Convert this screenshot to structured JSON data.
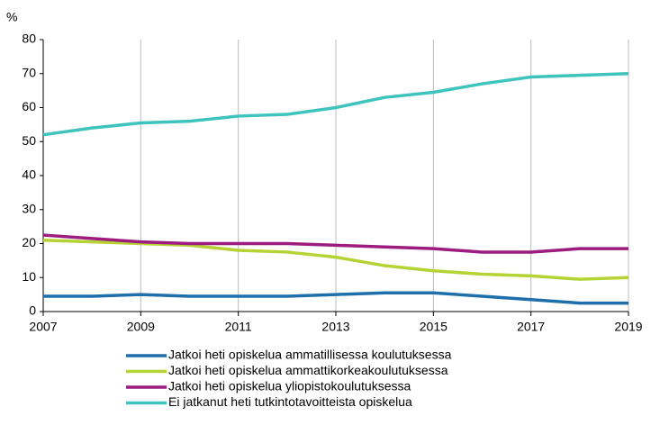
{
  "chart_data": {
    "type": "line",
    "y_label": "%",
    "x": [
      2007,
      2008,
      2009,
      2010,
      2011,
      2012,
      2013,
      2014,
      2015,
      2016,
      2017,
      2018,
      2019
    ],
    "xlim": [
      2007,
      2019
    ],
    "xticks": [
      2007,
      2009,
      2011,
      2013,
      2015,
      2017,
      2019
    ],
    "ylim": [
      0,
      80
    ],
    "yticks": [
      0,
      10,
      20,
      30,
      40,
      50,
      60,
      70,
      80
    ],
    "grid": "x",
    "legend": "bottom",
    "series": [
      {
        "name": "Jatkoi heti opiskelua ammatillisessa koulutuksessa",
        "color": "#1f6fab",
        "values": [
          4.5,
          4.5,
          5,
          4.5,
          4.5,
          4.5,
          5,
          5.5,
          5.5,
          4.5,
          3.5,
          2.5,
          2.5
        ]
      },
      {
        "name": "Jatkoi heti opiskelua ammattikorkeakoulutuksessa",
        "color": "#b5d335",
        "values": [
          21,
          20.5,
          20,
          19.5,
          18,
          17.5,
          16,
          13.5,
          12,
          11,
          10.5,
          9.5,
          10
        ]
      },
      {
        "name": "Jatkoi heti opiskelua yliopistokoulutuksessa",
        "color": "#9c1c7f",
        "values": [
          22.5,
          21.5,
          20.5,
          20,
          20,
          20,
          19.5,
          19,
          18.5,
          17.5,
          17.5,
          18.5,
          18.5
        ]
      },
      {
        "name": "Ei jatkanut heti tutkintotavoitteista opiskelua",
        "color": "#3fc4bd",
        "values": [
          52,
          54,
          55.5,
          56,
          57.5,
          58,
          60,
          63,
          64.5,
          67,
          69,
          69.5,
          70
        ]
      }
    ]
  }
}
